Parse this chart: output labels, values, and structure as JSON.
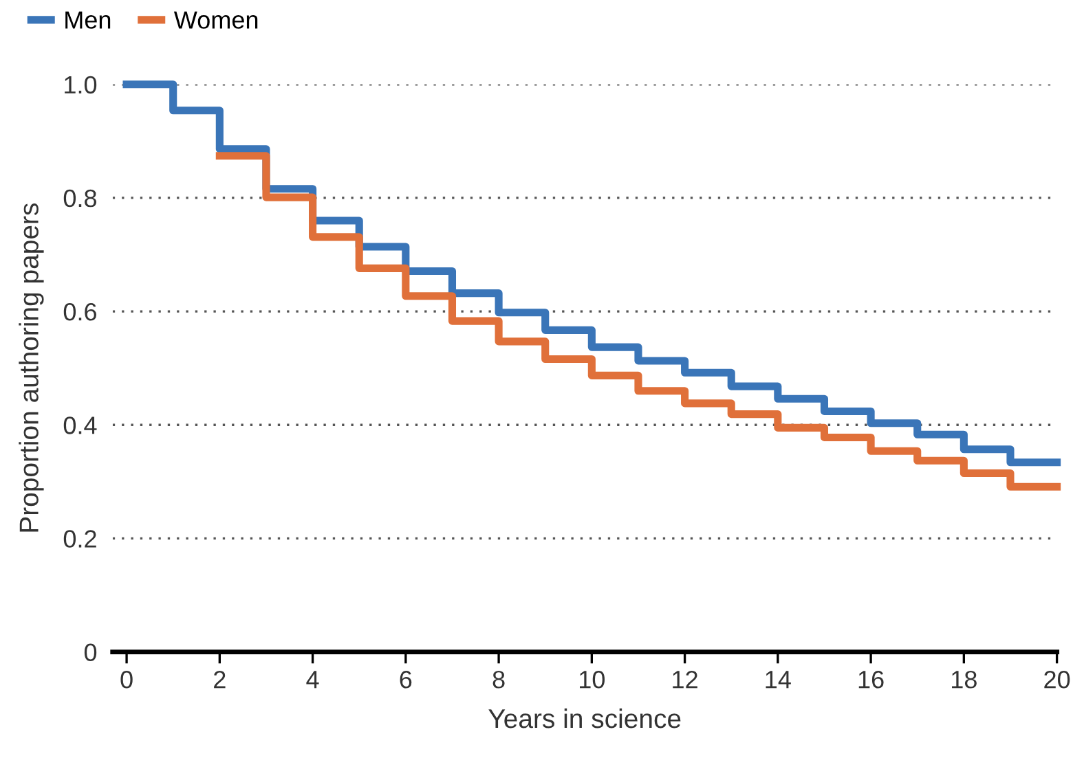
{
  "chart_data": {
    "type": "step",
    "xlabel": "Years in science",
    "ylabel": "Proportion authoring papers",
    "x": [
      0,
      1,
      2,
      3,
      4,
      5,
      6,
      7,
      8,
      9,
      10,
      11,
      12,
      13,
      14,
      15,
      16,
      17,
      18,
      19,
      20
    ],
    "series": [
      {
        "name": "Men",
        "color": "#3a75b8",
        "values": [
          1.0,
          0.954,
          0.886,
          0.816,
          0.76,
          0.714,
          0.671,
          0.632,
          0.598,
          0.567,
          0.537,
          0.513,
          0.492,
          0.468,
          0.446,
          0.424,
          0.403,
          0.383,
          0.357,
          0.334,
          0.334
        ]
      },
      {
        "name": "Women",
        "color": "#e0703a",
        "values": [
          null,
          null,
          0.874,
          0.801,
          0.731,
          0.676,
          0.627,
          0.583,
          0.547,
          0.516,
          0.487,
          0.46,
          0.438,
          0.419,
          0.395,
          0.378,
          0.354,
          0.337,
          0.315,
          0.291,
          0.291
        ]
      }
    ],
    "xlim": [
      -0.3,
      20
    ],
    "ylim": [
      0,
      1.0
    ],
    "xticks": [
      0,
      2,
      4,
      6,
      8,
      10,
      12,
      14,
      16,
      18,
      20
    ],
    "yticks": [
      {
        "value": 0,
        "label": "0"
      },
      {
        "value": 0.2,
        "label": "0.2"
      },
      {
        "value": 0.4,
        "label": "0.4"
      },
      {
        "value": 0.6,
        "label": "0.6"
      },
      {
        "value": 0.8,
        "label": "0.8"
      },
      {
        "value": 1.0,
        "label": "1.0"
      }
    ],
    "grid": "y",
    "legend": "top left",
    "line_style": "solid",
    "marker": "none"
  }
}
